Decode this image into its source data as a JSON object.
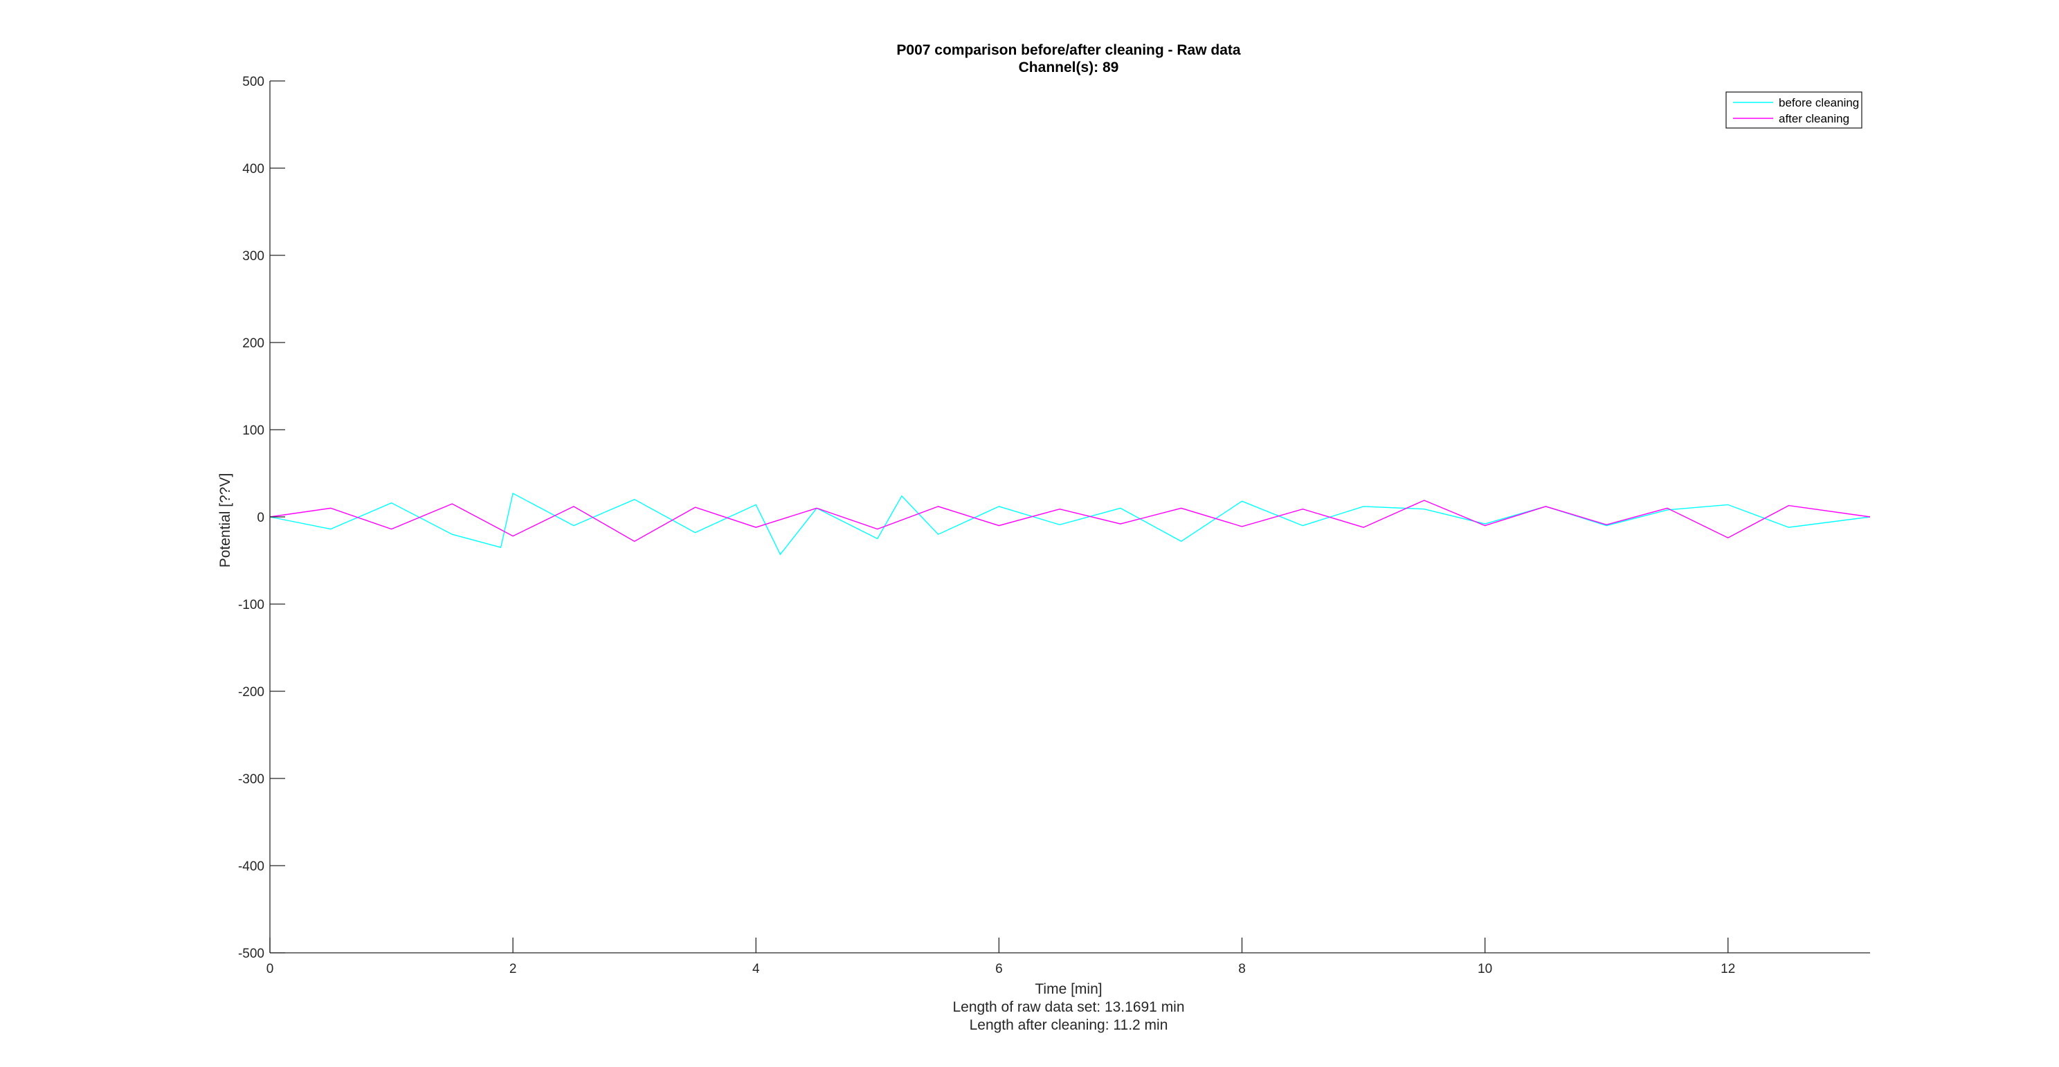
{
  "chart_data": {
    "type": "line",
    "title": "P007 comparison before/after cleaning - Raw data",
    "subtitle": "Channel(s): 89",
    "xlabel": "Time [min]",
    "xlabel_notes": [
      "Length of raw data set: 13.1691 min",
      "Length after cleaning: 11.2 min"
    ],
    "ylabel": "Potential [??V]",
    "xlim": [
      0,
      13.1691
    ],
    "ylim": [
      -500,
      500
    ],
    "x_ticks": [
      0,
      2,
      4,
      6,
      8,
      10,
      12
    ],
    "x_tick_labels": [
      "0",
      "2",
      "4",
      "6",
      "8",
      "10",
      "12"
    ],
    "y_ticks": [
      500,
      400,
      300,
      200,
      100,
      0,
      -100,
      -200,
      -300,
      -400,
      -500
    ],
    "y_tick_labels": [
      "500",
      "400",
      "300",
      "200",
      "100",
      "0",
      "-100",
      "-200",
      "-300",
      "-400",
      "-500"
    ],
    "grid": false,
    "legend_position": "top-right",
    "series": [
      {
        "name": "before cleaning",
        "color": "#00ffff",
        "x": [
          0,
          0.5,
          1.0,
          1.5,
          1.9,
          2.0,
          2.5,
          3.0,
          3.5,
          4.0,
          4.2,
          4.5,
          5.0,
          5.2,
          5.5,
          6.0,
          6.5,
          7.0,
          7.5,
          8.0,
          8.5,
          9.0,
          9.5,
          10.0,
          10.5,
          11.0,
          11.5,
          12.0,
          12.5,
          13.1691
        ],
        "y": [
          0,
          -14,
          16,
          -20,
          -35,
          27,
          -10,
          20,
          -18,
          14,
          -43,
          10,
          -25,
          24,
          -20,
          12,
          -9,
          10,
          -28,
          18,
          -10,
          12,
          9,
          -8,
          12,
          -10,
          8,
          14,
          -12,
          0
        ]
      },
      {
        "name": "after cleaning",
        "color": "#ff00ff",
        "x": [
          0,
          0.5,
          1.0,
          1.5,
          2.0,
          2.5,
          3.0,
          3.5,
          4.0,
          4.5,
          5.0,
          5.5,
          6.0,
          6.5,
          7.0,
          7.5,
          8.0,
          8.5,
          9.0,
          9.5,
          10.0,
          10.5,
          11.0,
          11.5,
          12.0,
          12.5,
          13.1691
        ],
        "y": [
          0,
          10,
          -14,
          15,
          -22,
          12,
          -28,
          11,
          -12,
          10,
          -14,
          12,
          -10,
          9,
          -8,
          10,
          -11,
          9,
          -12,
          19,
          -10,
          12,
          -9,
          10,
          -24,
          13,
          0
        ]
      }
    ]
  }
}
